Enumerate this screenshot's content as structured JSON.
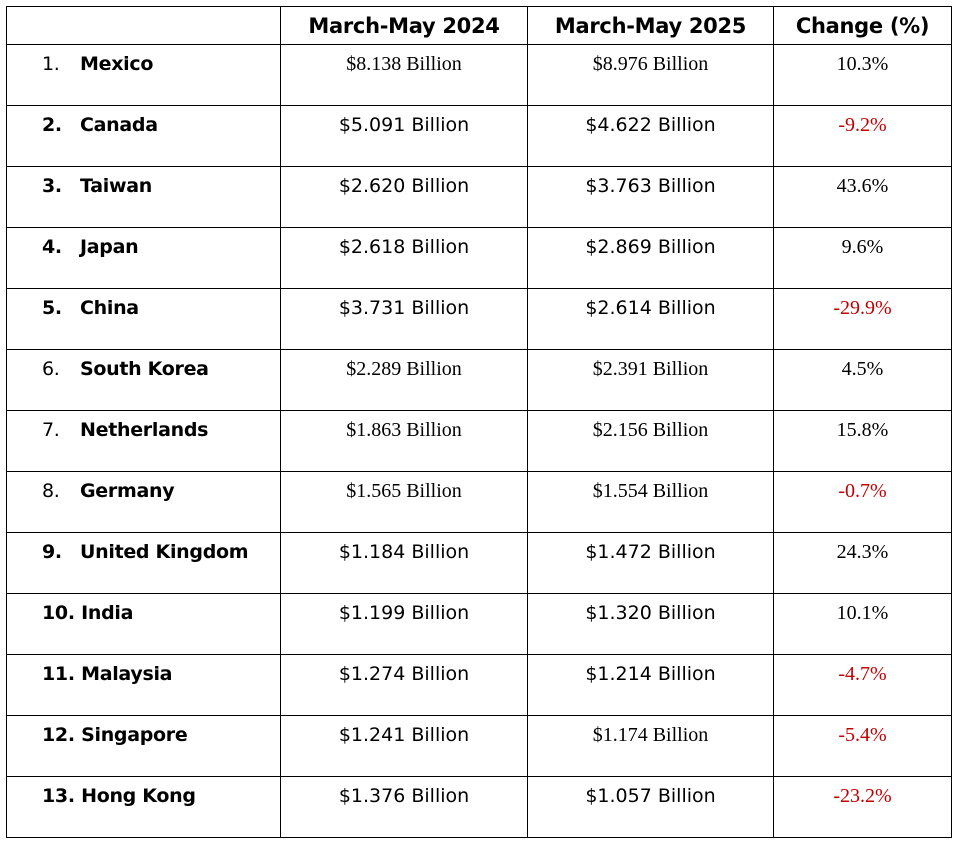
{
  "headers": [
    "",
    "March-May 2024",
    "March-May 2025",
    "Change (%)"
  ],
  "colors": {
    "negative": "#c00000",
    "positive": "#000000"
  },
  "rows": [
    {
      "num": "1.",
      "country": "Mexico",
      "v2024": "$8.138 Billion",
      "v2025": "$8.976 Billion",
      "change": "10.3%",
      "negative": false
    },
    {
      "num": "2.",
      "country": "Canada",
      "v2024": "$5.091 Billion",
      "v2025": "$4.622 Billion",
      "change": "-9.2%",
      "negative": true
    },
    {
      "num": "3.",
      "country": "Taiwan",
      "v2024": "$2.620 Billion",
      "v2025": "$3.763 Billion",
      "change": "43.6%",
      "negative": false
    },
    {
      "num": "4.",
      "country": "Japan",
      "v2024": "$2.618 Billion",
      "v2025": "$2.869 Billion",
      "change": "9.6%",
      "negative": false
    },
    {
      "num": "5.",
      "country": "China",
      "v2024": "$3.731 Billion",
      "v2025": "$2.614 Billion",
      "change": "-29.9%",
      "negative": true
    },
    {
      "num": "6.",
      "country": "South Korea",
      "v2024": "$2.289 Billion",
      "v2025": "$2.391 Billion",
      "change": "4.5%",
      "negative": false
    },
    {
      "num": "7.",
      "country": "Netherlands",
      "v2024": "$1.863 Billion",
      "v2025": "$2.156 Billion",
      "change": "15.8%",
      "negative": false
    },
    {
      "num": "8.",
      "country": "Germany",
      "v2024": "$1.565 Billion",
      "v2025": "$1.554 Billion",
      "change": "-0.7%",
      "negative": true
    },
    {
      "num": "9.",
      "country": "United Kingdom",
      "v2024": "$1.184 Billion",
      "v2025": "$1.472 Billion",
      "change": "24.3%",
      "negative": false
    },
    {
      "num": "10.",
      "country": "India",
      "v2024": "$1.199 Billion",
      "v2025": "$1.320 Billion",
      "change": "10.1%",
      "negative": false
    },
    {
      "num": "11.",
      "country": "Malaysia",
      "v2024": "$1.274 Billion",
      "v2025": "$1.214 Billion",
      "change": "-4.7%",
      "negative": true
    },
    {
      "num": "12.",
      "country": "Singapore",
      "v2024": "$1.241 Billion",
      "v2025": "$1.174 Billion",
      "change": "-5.4%",
      "negative": true
    },
    {
      "num": "13.",
      "country": "Hong Kong",
      "v2024": "$1.376 Billion",
      "v2025": "$1.057 Billion",
      "change": "-23.2%",
      "negative": true
    }
  ]
}
